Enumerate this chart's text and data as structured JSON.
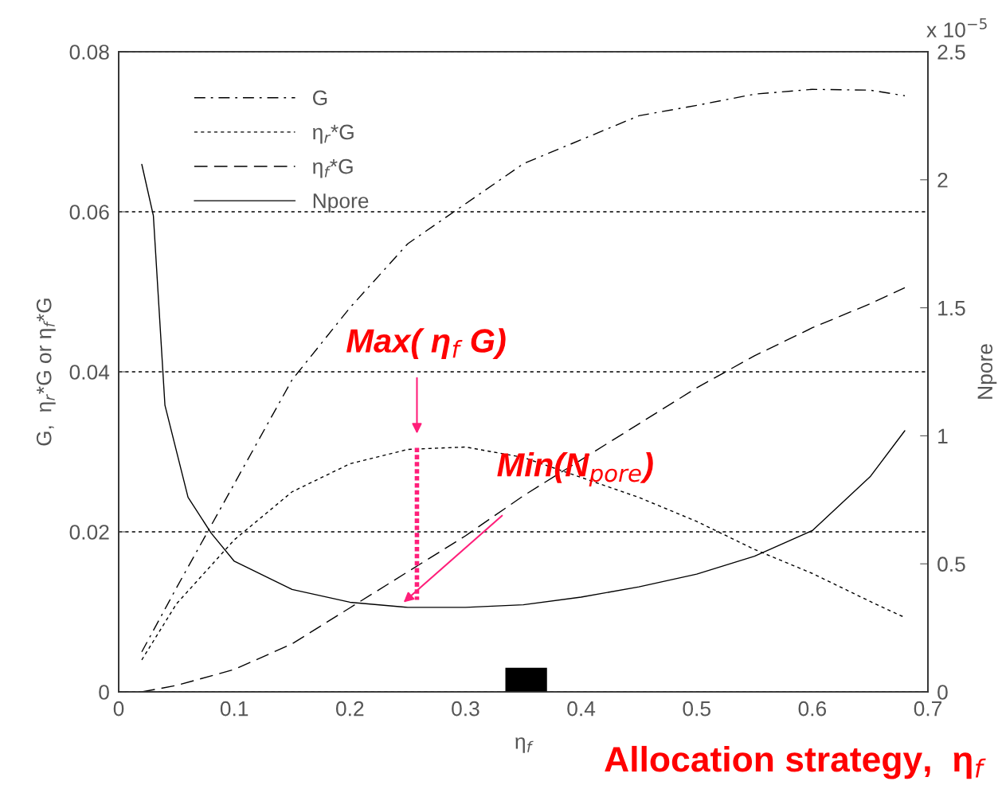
{
  "chart_data": {
    "type": "line",
    "xlabel": "η$_{f}$",
    "ylabel": "G,  η$_{r}$*G or η$_{f}$*G",
    "y2label": "Npore",
    "xlim": [
      0,
      0.7
    ],
    "xticks": [
      0,
      0.1,
      0.2,
      0.3,
      0.4,
      0.5,
      0.6,
      0.7
    ],
    "ylim": [
      0,
      0.08
    ],
    "yticks": [
      0,
      0.02,
      0.04,
      0.06,
      0.08
    ],
    "y2lim": [
      0,
      2.5
    ],
    "y2ticks": [
      0,
      0.5,
      1,
      1.5,
      2,
      2.5
    ],
    "grid": "y",
    "legend": "top left",
    "series": [
      {
        "name": "G",
        "color": "#000000",
        "line_style": "dashdot",
        "x": [
          0.02,
          0.05,
          0.1,
          0.15,
          0.2,
          0.25,
          0.3,
          0.35,
          0.4,
          0.45,
          0.5,
          0.55,
          0.6,
          0.65,
          0.68
        ],
        "values": [
          0.005,
          0.013,
          0.026,
          0.039,
          0.048,
          0.056,
          0.061,
          0.066,
          0.069,
          0.072,
          0.0733,
          0.0747,
          0.0753,
          0.0752,
          0.0745
        ]
      },
      {
        "name": "η$_{r}$*G",
        "color": "#000000",
        "line_style": "dotted",
        "x": [
          0.02,
          0.05,
          0.1,
          0.15,
          0.2,
          0.25,
          0.3,
          0.35,
          0.4,
          0.45,
          0.5,
          0.55,
          0.6,
          0.65,
          0.68
        ],
        "values": [
          0.004,
          0.011,
          0.019,
          0.025,
          0.0285,
          0.0303,
          0.0306,
          0.0293,
          0.0268,
          0.0243,
          0.0213,
          0.0178,
          0.0148,
          0.0113,
          0.0093
        ]
      },
      {
        "name": "η$_{f}$*G",
        "color": "#000000",
        "line_style": "dashed",
        "x": [
          0.02,
          0.05,
          0.1,
          0.15,
          0.2,
          0.25,
          0.3,
          0.35,
          0.4,
          0.45,
          0.5,
          0.55,
          0.6,
          0.65,
          0.68
        ],
        "values": [
          0.0,
          0.0008,
          0.0028,
          0.006,
          0.0105,
          0.015,
          0.0195,
          0.0245,
          0.029,
          0.0335,
          0.038,
          0.042,
          0.0455,
          0.0485,
          0.0505
        ]
      },
      {
        "type": "bar",
        "color": "#000000",
        "x": [
          0.3525
        ],
        "values": [
          0.003
        ]
      },
      {
        "name": "Npore",
        "color": "#000000",
        "line_style": "solid",
        "axis": "y2",
        "x": [
          0.02,
          0.03,
          0.04,
          0.06,
          0.08,
          0.1,
          0.15,
          0.2,
          0.25,
          0.3,
          0.35,
          0.4,
          0.45,
          0.5,
          0.55,
          0.6,
          0.65,
          0.68
        ],
        "values": [
          2.06,
          1.86,
          1.12,
          0.76,
          0.62,
          0.51,
          0.4,
          0.35,
          0.33,
          0.33,
          0.34,
          0.37,
          0.41,
          0.46,
          0.53,
          0.63,
          0.84,
          1.02
        ]
      }
    ],
    "annotations": [
      {
        "text": "Max( η$_{f}$ G)",
        "x": 0.258,
        "y": 0.0305
      },
      "Min(N$_{pore}$)",
      "x 10$^{−5}$",
      "Allocation strategy,  η$_{f}$"
    ]
  }
}
